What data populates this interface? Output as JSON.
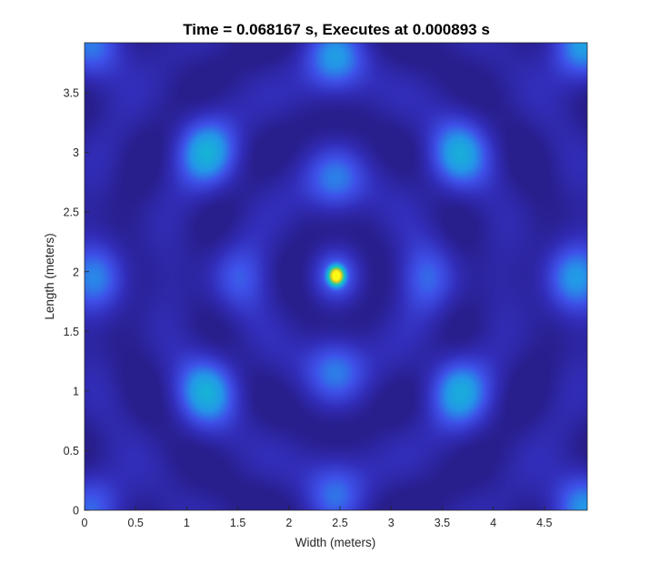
{
  "chart_data": {
    "type": "heatmap",
    "title": "Time = 0.068167 s, Executes at 0.000893 s",
    "xlabel": "Width (meters)",
    "ylabel": "Length (meters)",
    "xlim": [
      0,
      4.92
    ],
    "ylim": [
      0,
      3.92
    ],
    "xticks": [
      "0",
      "0.5",
      "1",
      "1.5",
      "2",
      "2.5",
      "3",
      "3.5",
      "4",
      "4.5"
    ],
    "yticks": [
      "0",
      "0.5",
      "1",
      "1.5",
      "2",
      "2.5",
      "3",
      "3.5"
    ],
    "colormap": "parula",
    "colorbar": false,
    "grid": false,
    "hotspots": [
      {
        "x": 2.46,
        "y": 1.97,
        "level": 1.0
      },
      {
        "x": 1.2,
        "y": 3.0,
        "level": 0.34
      },
      {
        "x": 3.65,
        "y": 2.98,
        "level": 0.33
      },
      {
        "x": 1.2,
        "y": 1.0,
        "level": 0.34
      },
      {
        "x": 3.65,
        "y": 1.0,
        "level": 0.33
      },
      {
        "x": 0.15,
        "y": 1.95,
        "level": 0.25
      },
      {
        "x": 4.75,
        "y": 1.95,
        "level": 0.3
      },
      {
        "x": 2.45,
        "y": 3.83,
        "level": 0.3
      },
      {
        "x": 2.45,
        "y": 0.1,
        "level": 0.22
      },
      {
        "x": 4.85,
        "y": 3.88,
        "level": 0.33
      },
      {
        "x": 4.85,
        "y": 0.05,
        "level": 0.3
      },
      {
        "x": 0.1,
        "y": 3.88,
        "level": 0.26
      },
      {
        "x": 0.1,
        "y": 0.05,
        "level": 0.22
      },
      {
        "x": 2.45,
        "y": 2.75,
        "level": 0.22
      },
      {
        "x": 2.45,
        "y": 1.2,
        "level": 0.22
      },
      {
        "x": 1.5,
        "y": 1.95,
        "level": 0.18
      },
      {
        "x": 3.35,
        "y": 1.95,
        "level": 0.2
      }
    ]
  }
}
